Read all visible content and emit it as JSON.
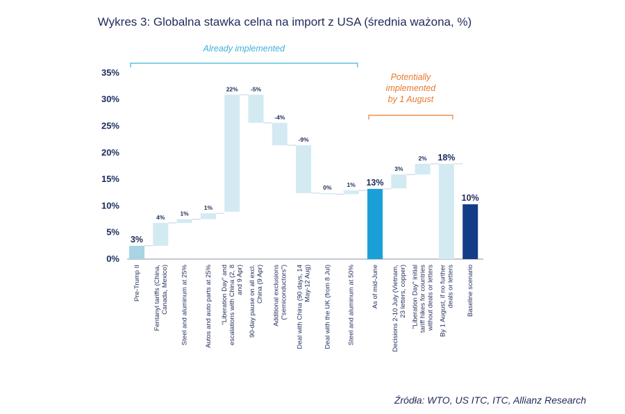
{
  "title": "Wykres 3: Globalna stawka celna na import z USA (średnia ważona, %)",
  "source": "Źródła: WTO, US ITC, ITC, Allianz Research",
  "colors": {
    "light_bar": "#d3eaf2",
    "total_light": "#a8d4e4",
    "mid_june": "#1aa0d7",
    "baseline": "#133d86",
    "text": "#1f2a5a",
    "bracket_blue": "#3bb1d8",
    "bracket_orange": "#e8792d"
  },
  "chart_data": {
    "type": "waterfall",
    "ylim": [
      0,
      35
    ],
    "yticks": [
      "0%",
      "5%",
      "10%",
      "15%",
      "20%",
      "25%",
      "30%",
      "35%"
    ],
    "bars": [
      {
        "label": "Pre-Trump II",
        "start": 0,
        "end": 2.5,
        "value_label": "3%",
        "kind": "total_light"
      },
      {
        "label": "Fentanyl tariffs (China, Canada, Mexico)",
        "start": 2.5,
        "end": 6.8,
        "value_label": "4%",
        "kind": "delta"
      },
      {
        "label": "Steel and aluminum at 25%",
        "start": 6.8,
        "end": 7.5,
        "value_label": "1%",
        "kind": "delta"
      },
      {
        "label": "Autos and auto parts at 25%",
        "start": 7.5,
        "end": 8.6,
        "value_label": "1%",
        "kind": "delta"
      },
      {
        "label": "\"Liberation Day\" and escalations with China (2, 8 and 9 Apr)",
        "start": 8.9,
        "end": 30.9,
        "value_label": "22%",
        "kind": "delta"
      },
      {
        "label": "90-day pause on all excl. China (9 Apr)",
        "start": 30.9,
        "end": 25.6,
        "value_label": "-5%",
        "kind": "delta"
      },
      {
        "label": "Additional exclusions (\"semiconductors\")",
        "start": 25.6,
        "end": 21.4,
        "value_label": "-4%",
        "kind": "delta"
      },
      {
        "label": "Deal with China (90 days, 14 May-12 Aug)",
        "start": 21.4,
        "end": 12.4,
        "value_label": "-9%",
        "kind": "delta"
      },
      {
        "label": "Deal with the UK (from 8 Jul)",
        "start": 12.4,
        "end": 12.2,
        "value_label": "0%",
        "kind": "delta"
      },
      {
        "label": "Steel and aluminum at 50%",
        "start": 12.2,
        "end": 12.9,
        "value_label": "1%",
        "kind": "delta"
      },
      {
        "label": "As of mid-June",
        "start": 0,
        "end": 13.2,
        "value_label": "13%",
        "kind": "total_mid"
      },
      {
        "label": "Decisions 2-10 July (Vietnam, 23 letters, copper)",
        "start": 13.3,
        "end": 15.9,
        "value_label": "3%",
        "kind": "delta"
      },
      {
        "label": "\"Liberation Day\" initial tariff hikes for countries without deals or letters",
        "start": 15.9,
        "end": 17.9,
        "value_label": "2%",
        "kind": "delta"
      },
      {
        "label": "By 1 August, if no further deals or letters",
        "start": 0,
        "end": 17.9,
        "value_label": "18%",
        "kind": "total_light"
      },
      {
        "label": "Baseline scenario",
        "start": 0,
        "end": 10.3,
        "value_label": "10%",
        "kind": "total_dark"
      }
    ],
    "annotations": [
      {
        "text": "Already implemented",
        "from_bar": 0,
        "to_bar": 9,
        "color": "bracket_blue"
      },
      {
        "text_lines": [
          "Potentially",
          "implemented",
          "by 1 August"
        ],
        "from_bar": 10,
        "to_bar": 13,
        "color": "bracket_orange"
      }
    ]
  }
}
